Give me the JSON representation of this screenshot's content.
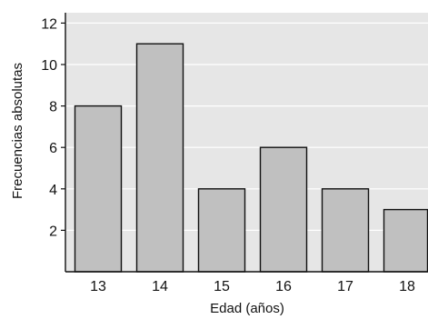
{
  "chart_data": {
    "type": "bar",
    "title": "",
    "xlabel": "Edad  (años)",
    "ylabel": "Frecuencias absolutas",
    "categories": [
      "13",
      "14",
      "15",
      "16",
      "17",
      "18"
    ],
    "values": [
      8,
      11,
      4,
      6,
      4,
      3
    ],
    "ylim": [
      0,
      12.5
    ],
    "yticks": [
      2,
      4,
      6,
      8,
      10,
      12
    ],
    "grid": true,
    "legend": "none",
    "colors": {
      "plot_background": "#e6e6e6",
      "bar_fill": "#c0c0c0",
      "bar_stroke": "#111111",
      "grid": "#ffffff",
      "axis": "#111111"
    }
  }
}
